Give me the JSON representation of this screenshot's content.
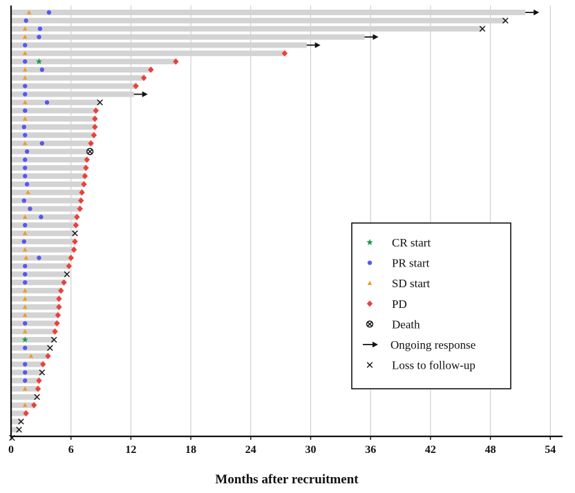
{
  "chart_data": {
    "type": "swimmer",
    "xlabel": "Months after recruitment",
    "xlim": [
      0,
      55
    ],
    "xticks": [
      0,
      6,
      12,
      18,
      24,
      30,
      36,
      42,
      48,
      54
    ],
    "grid": "vertical",
    "legend_position": "lower-right",
    "colors": {
      "bar": "#d3d3d3",
      "cr": "#1a9850",
      "pr": "#5757f0",
      "sd": "#f39a22",
      "pd": "#e8413c",
      "marker_black": "#111111",
      "grid": "#cfcfcf"
    },
    "legend": [
      {
        "key": "cr",
        "label": "CR start"
      },
      {
        "key": "pr",
        "label": "PR start"
      },
      {
        "key": "sd",
        "label": "SD start"
      },
      {
        "key": "pd",
        "label": "PD"
      },
      {
        "key": "death",
        "label": "Death"
      },
      {
        "key": "ongoing",
        "label": "Ongoing response"
      },
      {
        "key": "loss",
        "label": "Loss to follow-up"
      }
    ],
    "patients": [
      {
        "end": 51.5,
        "sd": 1.8,
        "pr": 3.8,
        "end_type": "ongoing"
      },
      {
        "end": 49.5,
        "pr": 1.5,
        "end_type": "loss"
      },
      {
        "end": 47.2,
        "sd": 1.4,
        "pr": 2.9,
        "end_type": "loss"
      },
      {
        "end": 35.4,
        "sd": 1.4,
        "pr": 2.8,
        "end_type": "ongoing"
      },
      {
        "end": 29.6,
        "pr": 1.4,
        "end_type": "ongoing"
      },
      {
        "end": 27.4,
        "sd": 1.4,
        "end_type": "pd"
      },
      {
        "end": 16.5,
        "pr": 1.4,
        "cr": 2.8,
        "end_type": "pd"
      },
      {
        "end": 14.0,
        "sd": 1.4,
        "pr": 3.1,
        "end_type": "pd"
      },
      {
        "end": 13.3,
        "sd": 1.4,
        "end_type": "pd"
      },
      {
        "end": 12.5,
        "pr": 1.4,
        "end_type": "pd"
      },
      {
        "end": 12.3,
        "pr": 1.4,
        "end_type": "ongoing"
      },
      {
        "end": 8.9,
        "sd": 1.4,
        "pr": 3.6,
        "end_type": "loss"
      },
      {
        "end": 8.5,
        "pr": 1.4,
        "end_type": "pd"
      },
      {
        "end": 8.4,
        "sd": 1.4,
        "end_type": "pd"
      },
      {
        "end": 8.4,
        "pr": 1.3,
        "end_type": "pd"
      },
      {
        "end": 8.3,
        "pr": 1.4,
        "end_type": "pd"
      },
      {
        "end": 8.0,
        "sd": 1.4,
        "pr": 3.1,
        "end_type": "pd"
      },
      {
        "end": 7.9,
        "pr": 1.6,
        "end_type": "death"
      },
      {
        "end": 7.6,
        "pr": 1.4,
        "end_type": "pd"
      },
      {
        "end": 7.5,
        "pr": 1.4,
        "end_type": "pd"
      },
      {
        "end": 7.4,
        "pr": 1.4,
        "end_type": "pd"
      },
      {
        "end": 7.3,
        "pr": 1.6,
        "end_type": "pd"
      },
      {
        "end": 7.1,
        "sd": 1.7,
        "end_type": "pd"
      },
      {
        "end": 7.0,
        "pr": 1.3,
        "end_type": "pd"
      },
      {
        "end": 6.9,
        "pr": 1.9,
        "end_type": "pd"
      },
      {
        "end": 6.6,
        "sd": 1.4,
        "pr": 3.0,
        "end_type": "pd"
      },
      {
        "end": 6.5,
        "pr": 1.4,
        "end_type": "pd"
      },
      {
        "end": 6.4,
        "sd": 1.4,
        "end_type": "loss"
      },
      {
        "end": 6.4,
        "pr": 1.3,
        "end_type": "pd"
      },
      {
        "end": 6.3,
        "sd": 1.4,
        "end_type": "pd"
      },
      {
        "end": 6.0,
        "sd": 1.5,
        "pr": 2.8,
        "end_type": "pd"
      },
      {
        "end": 5.8,
        "pr": 1.4,
        "end_type": "pd"
      },
      {
        "end": 5.6,
        "pr": 1.4,
        "end_type": "loss"
      },
      {
        "end": 5.3,
        "pr": 1.4,
        "end_type": "pd"
      },
      {
        "end": 5.0,
        "sd": 1.4,
        "end_type": "pd"
      },
      {
        "end": 4.8,
        "sd": 1.4,
        "end_type": "pd"
      },
      {
        "end": 4.8,
        "sd": 1.4,
        "end_type": "pd"
      },
      {
        "end": 4.7,
        "sd": 1.4,
        "end_type": "pd"
      },
      {
        "end": 4.6,
        "pr": 1.4,
        "end_type": "pd"
      },
      {
        "end": 4.4,
        "sd": 1.4,
        "end_type": "pd"
      },
      {
        "end": 4.3,
        "cr": 1.4,
        "end_type": "loss"
      },
      {
        "end": 3.9,
        "pr": 1.4,
        "end_type": "loss"
      },
      {
        "end": 3.7,
        "sd": 2.0,
        "end_type": "pd"
      },
      {
        "end": 3.2,
        "pr": 1.4,
        "end_type": "pd"
      },
      {
        "end": 3.1,
        "pr": 1.4,
        "end_type": "loss"
      },
      {
        "end": 2.8,
        "pr": 1.4,
        "end_type": "pd"
      },
      {
        "end": 2.7,
        "sd": 1.4,
        "end_type": "pd"
      },
      {
        "end": 2.6,
        "end_type": "loss"
      },
      {
        "end": 2.3,
        "sd": 1.4,
        "end_type": "pd"
      },
      {
        "end": 1.5,
        "end_type": "pd"
      },
      {
        "end": 1.0,
        "end_type": "loss"
      },
      {
        "end": 0.8,
        "end_type": "loss"
      },
      {
        "end": 0.1,
        "end_type": "loss"
      }
    ]
  }
}
